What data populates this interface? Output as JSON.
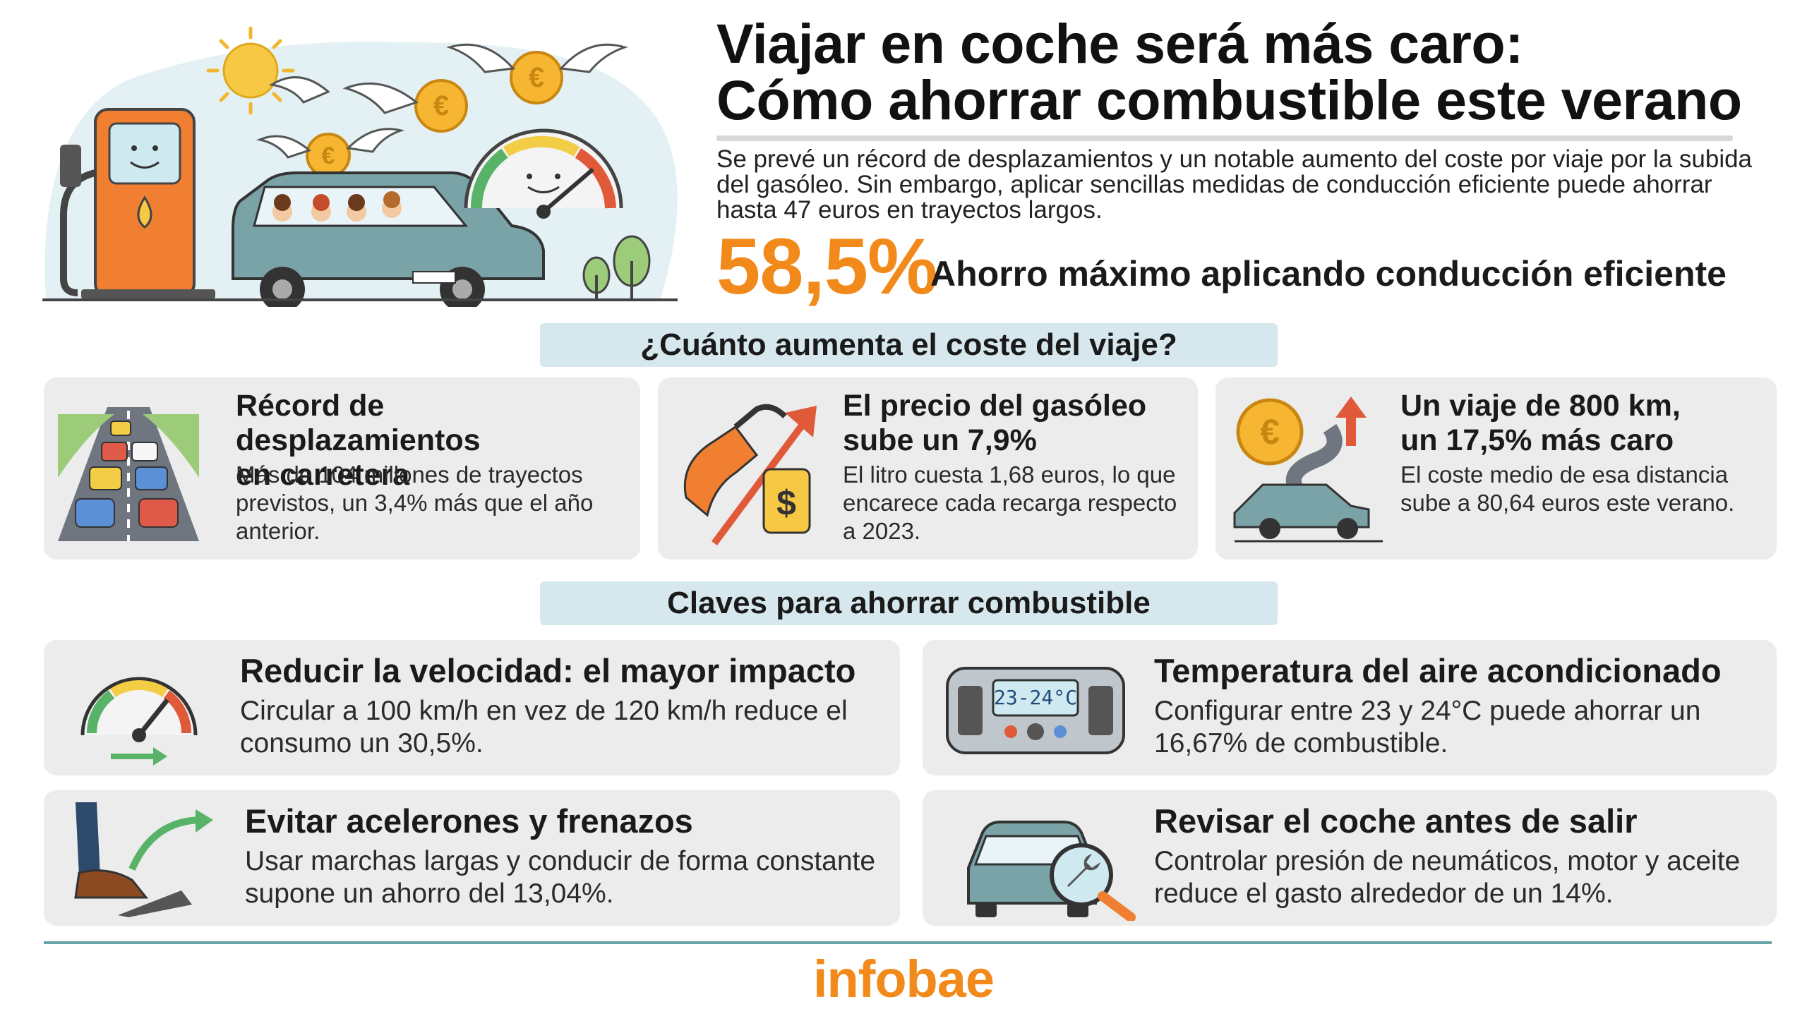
{
  "header": {
    "title_line1": "Viajar en coche será más caro:",
    "title_line2": "Cómo ahorrar combustible este verano",
    "intro": "Se prevé un récord de desplazamientos y un notable aumento del coste por viaje por la subida del gasóleo. Sin embargo, aplicar sencillas medidas de conducción eficiente puede ahorrar hasta 47 euros en trayectos largos.",
    "big_stat": "58,5%",
    "big_stat_label": "Ahorro máximo aplicando conducción eficiente"
  },
  "section1": {
    "heading": "¿Cuánto aumenta el coste del viaje?",
    "cards": [
      {
        "icon": "traffic-road-icon",
        "title": "Récord de desplazamientos en carretera",
        "title_l1": "Récord de desplazamientos",
        "title_l2": "en carretera",
        "body": "Más de 104 millones de trayectos previstos, un 3,4% más que el año anterior."
      },
      {
        "icon": "fuel-price-icon",
        "title": "El precio del gasóleo sube un 7,9%",
        "title_l1": "El precio del gasóleo",
        "title_l2": "sube un 7,9%",
        "body": "El litro cuesta 1,68 euros, lo que encarece cada recarga respecto a 2023."
      },
      {
        "icon": "euro-trip-icon",
        "title": "Un viaje de 800 km, un 17,5% más caro",
        "title_l1": "Un viaje de 800 km,",
        "title_l2": "un 17,5% más caro",
        "body": "El coste medio de esa distancia sube a 80,64 euros este verano."
      }
    ]
  },
  "section2": {
    "heading": "Claves para ahorrar combustible",
    "cards": [
      {
        "icon": "speedometer-icon",
        "title": "Reducir la velocidad: el mayor impacto",
        "body": "Circular a 100 km/h en vez de 120 km/h reduce el consumo un 30,5%."
      },
      {
        "icon": "air-conditioning-icon",
        "title": "Temperatura del aire acondicionado",
        "body": "Configurar entre 23 y 24°C puede ahorrar un 16,67% de combustible.",
        "display": "23-24°C"
      },
      {
        "icon": "pedal-icon",
        "title": "Evitar acelerones y frenazos",
        "body": "Usar marchas largas y conducir de forma constante supone un ahorro del 13,04%."
      },
      {
        "icon": "car-inspection-icon",
        "title": "Revisar el coche antes de salir",
        "body": "Controlar presión de neumáticos, motor y aceite reduce el gasto alrededor de un 14%."
      }
    ]
  },
  "footer": {
    "logo": "infobae"
  },
  "colors": {
    "accent": "#f28a1b",
    "section_bar": "#d6e8ee",
    "card_bg": "#ececec",
    "rule": "#6aa5a8"
  }
}
